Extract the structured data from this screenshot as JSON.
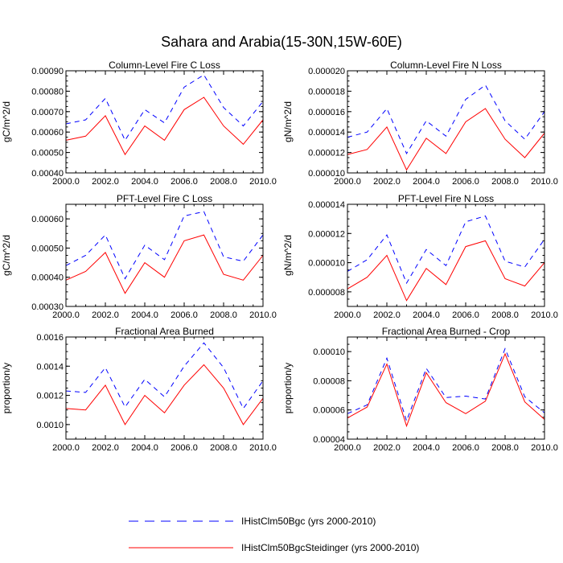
{
  "figure": {
    "title": "Sahara and Arabia(15-30N,15W-60E)",
    "colors": {
      "series1": "#0000ff",
      "series2": "#ff0000",
      "axis": "#000000"
    }
  },
  "legend": {
    "items": [
      {
        "label": "IHistClm50Bgc (yrs 2000-2010)",
        "color": "#0000ff",
        "style": "dashed"
      },
      {
        "label": "IHistClm50BgcSteidinger (yrs 2000-2010)",
        "color": "#ff0000",
        "style": "solid"
      }
    ]
  },
  "chart_data": [
    {
      "type": "line",
      "title": "Column-Level Fire C Loss",
      "xlabel": "",
      "ylabel": "gC/m^2/d",
      "x": [
        2000,
        2001,
        2002,
        2003,
        2004,
        2005,
        2006,
        2007,
        2008,
        2009,
        2010
      ],
      "xlim": [
        2000,
        2010
      ],
      "ylim": [
        0.0004,
        0.0009
      ],
      "xticks": [
        "2000.0",
        "2002.0",
        "2004.0",
        "2006.0",
        "2008.0",
        "2010.0"
      ],
      "yticks": [
        "0.00040",
        "0.00050",
        "0.00060",
        "0.00070",
        "0.00080",
        "0.00090"
      ],
      "series": [
        {
          "name": "IHistClm50Bgc (yrs 2000-2010)",
          "values": [
            0.00064,
            0.00066,
            0.000765,
            0.00056,
            0.00071,
            0.000645,
            0.00082,
            0.00088,
            0.00072,
            0.00063,
            0.00075
          ]
        },
        {
          "name": "IHistClm50BgcSteidinger (yrs 2000-2010)",
          "values": [
            0.00056,
            0.00058,
            0.00068,
            0.00049,
            0.00063,
            0.00056,
            0.00071,
            0.00077,
            0.00063,
            0.00054,
            0.00066
          ]
        }
      ]
    },
    {
      "type": "line",
      "title": "Column-Level Fire N Loss",
      "xlabel": "",
      "ylabel": "gN/m^2/d",
      "x": [
        2000,
        2001,
        2002,
        2003,
        2004,
        2005,
        2006,
        2007,
        2008,
        2009,
        2010
      ],
      "xlim": [
        2000,
        2010
      ],
      "ylim": [
        1e-05,
        2e-05
      ],
      "xticks": [
        "2000.0",
        "2002.0",
        "2004.0",
        "2006.0",
        "2008.0",
        "2010.0"
      ],
      "yticks": [
        "0.000010",
        "0.000012",
        "0.000014",
        "0.000016",
        "0.000018",
        "0.000020"
      ],
      "series": [
        {
          "name": "IHistClm50Bgc (yrs 2000-2010)",
          "values": [
            1.35e-05,
            1.4e-05,
            1.63e-05,
            1.19e-05,
            1.51e-05,
            1.36e-05,
            1.72e-05,
            1.86e-05,
            1.51e-05,
            1.33e-05,
            1.6e-05
          ]
        },
        {
          "name": "IHistClm50BgcSteidinger (yrs 2000-2010)",
          "values": [
            1.18e-05,
            1.23e-05,
            1.45e-05,
            1.03e-05,
            1.34e-05,
            1.19e-05,
            1.5e-05,
            1.63e-05,
            1.33e-05,
            1.15e-05,
            1.39e-05
          ]
        }
      ]
    },
    {
      "type": "line",
      "title": "PFT-Level Fire C Loss",
      "xlabel": "",
      "ylabel": "gC/m^2/d",
      "x": [
        2000,
        2001,
        2002,
        2003,
        2004,
        2005,
        2006,
        2007,
        2008,
        2009,
        2010
      ],
      "xlim": [
        2000,
        2010
      ],
      "ylim": [
        0.0003,
        0.00065
      ],
      "xticks": [
        "2000.0",
        "2002.0",
        "2004.0",
        "2006.0",
        "2008.0",
        "2010.0"
      ],
      "yticks": [
        "0.00030",
        "0.00040",
        "0.00050",
        "0.00060"
      ],
      "series": [
        {
          "name": "IHistClm50Bgc (yrs 2000-2010)",
          "values": [
            0.00044,
            0.000475,
            0.000545,
            0.000395,
            0.00051,
            0.00046,
            0.00061,
            0.000625,
            0.00047,
            0.000455,
            0.000545
          ]
        },
        {
          "name": "IHistClm50BgcSteidinger (yrs 2000-2010)",
          "values": [
            0.00039,
            0.00042,
            0.000485,
            0.000345,
            0.00045,
            0.0004,
            0.000525,
            0.000545,
            0.00041,
            0.00039,
            0.000475
          ]
        }
      ]
    },
    {
      "type": "line",
      "title": "PFT-Level Fire N Loss",
      "xlabel": "",
      "ylabel": "gN/m^2/d",
      "x": [
        2000,
        2001,
        2002,
        2003,
        2004,
        2005,
        2006,
        2007,
        2008,
        2009,
        2010
      ],
      "xlim": [
        2000,
        2010
      ],
      "ylim": [
        7e-06,
        1.4e-05
      ],
      "xticks": [
        "2000.0",
        "2002.0",
        "2004.0",
        "2006.0",
        "2008.0",
        "2010.0"
      ],
      "yticks": [
        "0.000008",
        "0.000010",
        "0.000012",
        "0.000014"
      ],
      "series": [
        {
          "name": "IHistClm50Bgc (yrs 2000-2010)",
          "values": [
            9.4e-06,
            1.02e-05,
            1.19e-05,
            8.6e-06,
            1.09e-05,
            9.8e-06,
            1.28e-05,
            1.32e-05,
            1.01e-05,
            9.7e-06,
            1.16e-05
          ]
        },
        {
          "name": "IHistClm50BgcSteidinger (yrs 2000-2010)",
          "values": [
            8.2e-06,
            9e-06,
            1.05e-05,
            7.4e-06,
            9.6e-06,
            8.5e-06,
            1.11e-05,
            1.15e-05,
            8.9e-06,
            8.4e-06,
            1e-05
          ]
        }
      ]
    },
    {
      "type": "line",
      "title": "Fractional Area Burned",
      "xlabel": "",
      "ylabel": "proportion/y",
      "x": [
        2000,
        2001,
        2002,
        2003,
        2004,
        2005,
        2006,
        2007,
        2008,
        2009,
        2010
      ],
      "xlim": [
        2000,
        2010
      ],
      "ylim": [
        0.0009,
        0.0016
      ],
      "xticks": [
        "2000.0",
        "2002.0",
        "2004.0",
        "2006.0",
        "2008.0",
        "2010.0"
      ],
      "yticks": [
        "0.0010",
        "0.0012",
        "0.0014",
        "0.0016"
      ],
      "series": [
        {
          "name": "IHistClm50Bgc (yrs 2000-2010)",
          "values": [
            0.00123,
            0.00122,
            0.00139,
            0.00112,
            0.00131,
            0.00119,
            0.0014,
            0.00156,
            0.00139,
            0.00111,
            0.0013
          ]
        },
        {
          "name": "IHistClm50BgcSteidinger (yrs 2000-2010)",
          "values": [
            0.00111,
            0.0011,
            0.00127,
            0.001,
            0.0012,
            0.00108,
            0.00127,
            0.00141,
            0.00125,
            0.001,
            0.00118
          ]
        }
      ]
    },
    {
      "type": "line",
      "title": "Fractional Area Burned - Crop",
      "xlabel": "",
      "ylabel": "proportion/y",
      "x": [
        2000,
        2001,
        2002,
        2003,
        2004,
        2005,
        2006,
        2007,
        2008,
        2009,
        2010
      ],
      "xlim": [
        2000,
        2010
      ],
      "ylim": [
        4e-05,
        0.00011
      ],
      "xticks": [
        "2000.0",
        "2002.0",
        "2004.0",
        "2006.0",
        "2008.0",
        "2010.0"
      ],
      "yticks": [
        "0.00004",
        "0.00006",
        "0.00008",
        "0.00010"
      ],
      "series": [
        {
          "name": "IHistClm50Bgc (yrs 2000-2010)",
          "values": [
            5.75e-05,
            6.35e-05,
            9.55e-05,
            5.25e-05,
            8.85e-05,
            6.85e-05,
            6.95e-05,
            6.75e-05,
            0.000102,
            6.9e-05,
            5.8e-05
          ]
        },
        {
          "name": "IHistClm50BgcSteidinger (yrs 2000-2010)",
          "values": [
            5.45e-05,
            6.2e-05,
            9.15e-05,
            4.9e-05,
            8.55e-05,
            6.5e-05,
            5.75e-05,
            6.6e-05,
            9.85e-05,
            6.55e-05,
            5.35e-05
          ]
        }
      ]
    }
  ]
}
